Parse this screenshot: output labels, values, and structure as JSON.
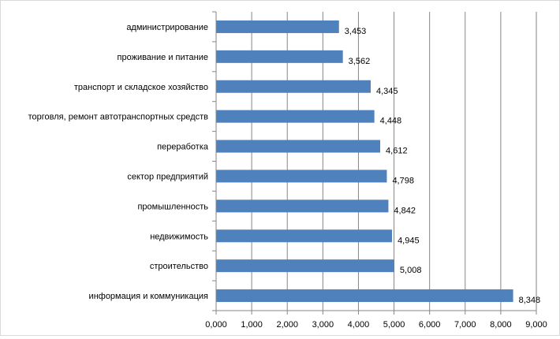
{
  "chart_data": {
    "type": "bar",
    "orientation": "horizontal",
    "title": "",
    "xlabel": "",
    "ylabel": "",
    "categories": [
      "администрирование",
      "проживание и питание",
      "транспорт и складское хозяйство",
      "торговля, ремонт автотранспортных средств",
      "переработка",
      "сектор предприятий",
      "промышленность",
      "недвижимость",
      "строительство",
      "информация и коммуникация"
    ],
    "values": [
      3.453,
      3.562,
      4.345,
      4.448,
      4.612,
      4.798,
      4.842,
      4.945,
      5.008,
      8.348
    ],
    "value_labels": [
      "3,453",
      "3,562",
      "4,345",
      "4,448",
      "4,612",
      "4,798",
      "4,842",
      "4,945",
      "5,008",
      "8,348"
    ],
    "xlim": [
      0,
      9
    ],
    "x_ticks": [
      0,
      1,
      2,
      3,
      4,
      5,
      6,
      7,
      8,
      9
    ],
    "x_tick_labels": [
      "0,000",
      "1,000",
      "2,000",
      "3,000",
      "4,000",
      "5,000",
      "6,000",
      "7,000",
      "8,000",
      "9,000"
    ],
    "grid": "vertical",
    "legend": "none",
    "bar_color": "#4f81bd",
    "grid_color": "#868686",
    "axis_color": "#868686"
  }
}
